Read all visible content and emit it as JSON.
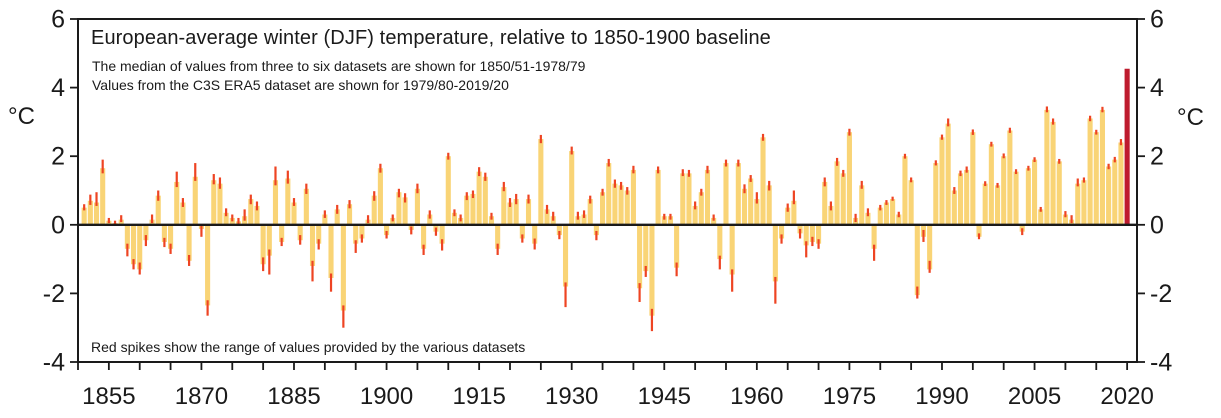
{
  "chart_data": {
    "type": "bar",
    "title": "European-average winter (DJF) temperature, relative to 1850-1900 baseline",
    "subtitle_lines": [
      "The median of values from three to six datasets are shown for 1850/51-1978/79",
      "Values from the C3S ERA5 dataset are shown for 1979/80-2019/20"
    ],
    "note": "Red spikes show the range of values provided by the various datasets",
    "y_axis": {
      "label": "°C",
      "ticks": [
        -4,
        -2,
        0,
        2,
        4,
        6
      ],
      "min": -4,
      "max": 6
    },
    "x_axis": {
      "min": 1850,
      "max": 2021.6,
      "tick_start": 1850,
      "tick_end": 2020,
      "tick_step": 5,
      "labels": [
        1855,
        1870,
        1885,
        1900,
        1915,
        1930,
        1945,
        1960,
        1975,
        1990,
        2005,
        2020
      ]
    },
    "highlight_year": 2020,
    "colors": {
      "bar": "#F9D476",
      "spike": "#EE4423",
      "highlight_bar": "#BE1B2E",
      "axis": "#1a1a1a",
      "background": "#FFFFFF"
    },
    "bars_format": [
      "year",
      "value_C",
      "range_low_C",
      "range_high_C"
    ],
    "bars": [
      [
        1851,
        0.5,
        0.42,
        0.6
      ],
      [
        1852,
        0.7,
        0.58,
        0.88
      ],
      [
        1853,
        0.65,
        0.55,
        0.95
      ],
      [
        1854,
        1.65,
        1.5,
        1.9
      ],
      [
        1855,
        0.12,
        0.05,
        0.2
      ],
      [
        1856,
        0.05,
        0,
        0.12
      ],
      [
        1857,
        0.15,
        0.08,
        0.28
      ],
      [
        1858,
        -0.7,
        -0.92,
        -0.55
      ],
      [
        1859,
        -1.15,
        -1.3,
        -1.0
      ],
      [
        1860,
        -1.3,
        -1.45,
        -1.1
      ],
      [
        1861,
        -0.45,
        -0.62,
        -0.3
      ],
      [
        1862,
        0.15,
        0.05,
        0.3
      ],
      [
        1863,
        0.85,
        0.7,
        1.0
      ],
      [
        1864,
        -0.5,
        -0.65,
        -0.38
      ],
      [
        1865,
        -0.7,
        -0.85,
        -0.55
      ],
      [
        1866,
        1.25,
        1.1,
        1.55
      ],
      [
        1867,
        0.65,
        0.52,
        0.78
      ],
      [
        1868,
        -1.05,
        -1.2,
        -0.88
      ],
      [
        1869,
        1.4,
        1.28,
        1.8
      ],
      [
        1870,
        -0.12,
        -0.35,
        -0.02
      ],
      [
        1871,
        -2.35,
        -2.65,
        -2.2
      ],
      [
        1872,
        1.3,
        1.18,
        1.48
      ],
      [
        1873,
        1.2,
        1.05,
        1.38
      ],
      [
        1874,
        0.35,
        0.25,
        0.48
      ],
      [
        1875,
        0.2,
        0.1,
        0.3
      ],
      [
        1876,
        0.1,
        0.02,
        0.2
      ],
      [
        1877,
        0.25,
        0.12,
        0.45
      ],
      [
        1878,
        0.75,
        0.6,
        0.88
      ],
      [
        1879,
        0.55,
        0.42,
        0.68
      ],
      [
        1880,
        -1.15,
        -1.35,
        -0.95
      ],
      [
        1881,
        -0.9,
        -1.45,
        -0.72
      ],
      [
        1882,
        1.3,
        1.15,
        1.7
      ],
      [
        1883,
        -0.5,
        -0.62,
        -0.38
      ],
      [
        1884,
        1.35,
        1.2,
        1.58
      ],
      [
        1885,
        0.65,
        0.55,
        0.78
      ],
      [
        1886,
        -0.45,
        -0.58,
        -0.3
      ],
      [
        1887,
        1.05,
        0.9,
        1.2
      ],
      [
        1888,
        -1.2,
        -1.65,
        -1.05
      ],
      [
        1889,
        -0.55,
        -0.72,
        -0.42
      ],
      [
        1890,
        0.3,
        0.2,
        0.42
      ],
      [
        1891,
        -1.55,
        -1.95,
        -1.42
      ],
      [
        1892,
        0.45,
        0.32,
        0.58
      ],
      [
        1893,
        -2.5,
        -3.0,
        -2.35
      ],
      [
        1894,
        0.6,
        0.48,
        0.72
      ],
      [
        1895,
        -0.55,
        -0.82,
        -0.45
      ],
      [
        1896,
        -0.4,
        -0.52,
        -0.28
      ],
      [
        1897,
        0.15,
        0.05,
        0.28
      ],
      [
        1898,
        0.85,
        0.7,
        0.98
      ],
      [
        1899,
        1.65,
        1.52,
        1.78
      ],
      [
        1900,
        -0.3,
        -0.4,
        -0.18
      ],
      [
        1901,
        0.2,
        0.1,
        0.3
      ],
      [
        1902,
        0.95,
        0.8,
        1.05
      ],
      [
        1903,
        0.8,
        0.65,
        0.92
      ],
      [
        1904,
        -0.15,
        -0.28,
        -0.05
      ],
      [
        1905,
        1.05,
        0.92,
        1.2
      ],
      [
        1906,
        -0.7,
        -0.88,
        -0.58
      ],
      [
        1907,
        0.3,
        0.18,
        0.42
      ],
      [
        1908,
        -0.2,
        -0.32,
        -0.08
      ],
      [
        1909,
        -0.55,
        -0.75,
        -0.42
      ],
      [
        1910,
        2.0,
        1.9,
        2.1
      ],
      [
        1911,
        0.35,
        0.25,
        0.45
      ],
      [
        1912,
        0.2,
        0.1,
        0.3
      ],
      [
        1913,
        0.85,
        0.72,
        0.95
      ],
      [
        1914,
        0.9,
        0.78,
        1.0
      ],
      [
        1915,
        1.55,
        1.42,
        1.68
      ],
      [
        1916,
        1.4,
        1.28,
        1.52
      ],
      [
        1917,
        0.25,
        0.15,
        0.35
      ],
      [
        1918,
        -0.7,
        -0.88,
        -0.55
      ],
      [
        1919,
        1.1,
        0.98,
        1.25
      ],
      [
        1920,
        0.65,
        0.52,
        0.78
      ],
      [
        1921,
        0.75,
        0.6,
        0.9
      ],
      [
        1922,
        -0.4,
        -0.52,
        -0.28
      ],
      [
        1923,
        0.75,
        0.62,
        0.88
      ],
      [
        1924,
        -0.55,
        -0.72,
        -0.4
      ],
      [
        1925,
        2.5,
        2.38,
        2.62
      ],
      [
        1926,
        0.45,
        0.32,
        0.58
      ],
      [
        1927,
        0.25,
        0.12,
        0.38
      ],
      [
        1928,
        -0.3,
        -0.42,
        -0.18
      ],
      [
        1929,
        -1.8,
        -2.4,
        -1.68
      ],
      [
        1930,
        2.15,
        2.05,
        2.28
      ],
      [
        1931,
        0.25,
        0.15,
        0.38
      ],
      [
        1932,
        0.3,
        0.2,
        0.42
      ],
      [
        1933,
        0.75,
        0.62,
        0.85
      ],
      [
        1934,
        -0.3,
        -0.45,
        -0.18
      ],
      [
        1935,
        0.95,
        0.85,
        1.05
      ],
      [
        1936,
        1.8,
        1.7,
        1.92
      ],
      [
        1937,
        1.2,
        1.08,
        1.32
      ],
      [
        1938,
        1.15,
        1.02,
        1.25
      ],
      [
        1939,
        1.0,
        0.88,
        1.1
      ],
      [
        1940,
        1.6,
        1.5,
        1.72
      ],
      [
        1941,
        -1.85,
        -2.25,
        -1.7
      ],
      [
        1942,
        -1.35,
        -1.52,
        -1.2
      ],
      [
        1943,
        -2.65,
        -3.1,
        -2.45
      ],
      [
        1944,
        1.6,
        1.5,
        1.7
      ],
      [
        1945,
        0.25,
        0.15,
        0.32
      ],
      [
        1946,
        0.25,
        0.15,
        0.32
      ],
      [
        1947,
        -1.25,
        -1.5,
        -1.1
      ],
      [
        1948,
        1.5,
        1.42,
        1.62
      ],
      [
        1949,
        1.5,
        1.4,
        1.6
      ],
      [
        1950,
        0.55,
        0.45,
        0.68
      ],
      [
        1951,
        0.95,
        0.85,
        1.05
      ],
      [
        1952,
        1.6,
        1.5,
        1.72
      ],
      [
        1953,
        0.2,
        0.12,
        0.3
      ],
      [
        1954,
        -1.0,
        -1.3,
        -0.9
      ],
      [
        1955,
        1.8,
        1.7,
        1.9
      ],
      [
        1956,
        -1.45,
        -1.95,
        -1.3
      ],
      [
        1957,
        1.8,
        1.7,
        1.9
      ],
      [
        1958,
        1.05,
        0.92,
        1.18
      ],
      [
        1959,
        1.35,
        1.25,
        1.45
      ],
      [
        1960,
        0.75,
        0.62,
        0.95
      ],
      [
        1961,
        2.55,
        2.45,
        2.65
      ],
      [
        1962,
        1.15,
        1.0,
        1.28
      ],
      [
        1963,
        -1.65,
        -2.3,
        -1.52
      ],
      [
        1964,
        -0.4,
        -0.55,
        -0.28
      ],
      [
        1965,
        0.5,
        0.38,
        0.62
      ],
      [
        1966,
        0.7,
        0.6,
        1.0
      ],
      [
        1967,
        -0.25,
        -0.4,
        -0.12
      ],
      [
        1968,
        -0.6,
        -0.95,
        -0.48
      ],
      [
        1969,
        -0.5,
        -0.62,
        -0.35
      ],
      [
        1970,
        -0.55,
        -0.7,
        -0.42
      ],
      [
        1971,
        1.25,
        1.12,
        1.38
      ],
      [
        1972,
        0.55,
        0.42,
        0.68
      ],
      [
        1973,
        1.85,
        1.72,
        1.95
      ],
      [
        1974,
        1.5,
        1.4,
        1.6
      ],
      [
        1975,
        2.7,
        2.6,
        2.8
      ],
      [
        1976,
        0.2,
        0.08,
        0.32
      ],
      [
        1977,
        1.15,
        1.05,
        1.28
      ],
      [
        1978,
        0.35,
        0.25,
        0.48
      ],
      [
        1979,
        -0.7,
        -1.05,
        -0.58
      ],
      [
        1980,
        0.5,
        0.42,
        0.58
      ],
      [
        1981,
        0.65,
        0.58,
        0.72
      ],
      [
        1982,
        0.75,
        0.7,
        0.82
      ],
      [
        1983,
        0.3,
        0.22,
        0.38
      ],
      [
        1984,
        2.0,
        1.93,
        2.07
      ],
      [
        1985,
        1.3,
        1.24,
        1.38
      ],
      [
        1986,
        -2.05,
        -2.15,
        -1.8
      ],
      [
        1987,
        -0.35,
        -0.5,
        -0.15
      ],
      [
        1988,
        -1.3,
        -1.4,
        -1.05
      ],
      [
        1989,
        1.8,
        1.73,
        1.88
      ],
      [
        1990,
        2.55,
        2.48,
        2.63
      ],
      [
        1991,
        2.95,
        2.87,
        3.1
      ],
      [
        1992,
        1.0,
        0.9,
        1.1
      ],
      [
        1993,
        1.5,
        1.42,
        1.58
      ],
      [
        1994,
        1.6,
        1.52,
        1.7
      ],
      [
        1995,
        2.7,
        2.62,
        2.78
      ],
      [
        1996,
        -0.35,
        -0.42,
        -0.25
      ],
      [
        1997,
        1.2,
        1.13,
        1.27
      ],
      [
        1998,
        2.35,
        2.28,
        2.42
      ],
      [
        1999,
        1.15,
        1.08,
        1.22
      ],
      [
        2000,
        2.0,
        1.94,
        2.08
      ],
      [
        2001,
        2.75,
        2.68,
        2.83
      ],
      [
        2002,
        1.55,
        1.48,
        1.62
      ],
      [
        2003,
        -0.2,
        -0.3,
        -0.1
      ],
      [
        2004,
        1.65,
        1.58,
        1.72
      ],
      [
        2005,
        1.9,
        1.83,
        1.97
      ],
      [
        2006,
        0.45,
        0.38,
        0.52
      ],
      [
        2007,
        3.35,
        3.28,
        3.45
      ],
      [
        2008,
        3.0,
        2.92,
        3.1
      ],
      [
        2009,
        1.85,
        1.78,
        1.92
      ],
      [
        2010,
        0.3,
        0.22,
        0.4
      ],
      [
        2011,
        0.15,
        0.05,
        0.28
      ],
      [
        2012,
        1.2,
        1.12,
        1.35
      ],
      [
        2013,
        1.3,
        1.23,
        1.38
      ],
      [
        2014,
        3.1,
        3.02,
        3.18
      ],
      [
        2015,
        2.7,
        2.63,
        2.77
      ],
      [
        2016,
        3.35,
        3.28,
        3.44
      ],
      [
        2017,
        1.7,
        1.62,
        1.78
      ],
      [
        2018,
        1.9,
        1.82,
        1.98
      ],
      [
        2019,
        2.4,
        2.32,
        2.5
      ],
      [
        2020,
        4.55,
        4.55,
        4.55
      ]
    ]
  }
}
